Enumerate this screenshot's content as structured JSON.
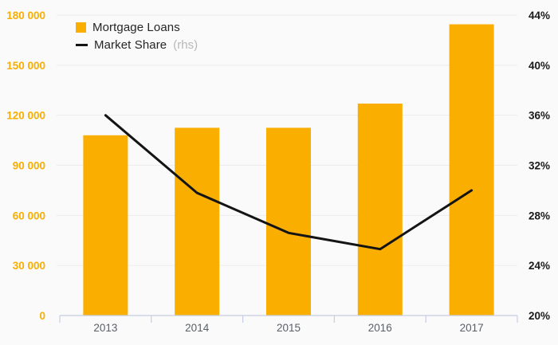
{
  "chart_data": {
    "type": "bar",
    "combo": "bar+line",
    "title": "",
    "categories": [
      "2013",
      "2014",
      "2015",
      "2016",
      "2017"
    ],
    "series": [
      {
        "name": "Mortgage Loans",
        "type": "bar",
        "axis": "left",
        "color": "#F9AE00",
        "values": [
          108000,
          112500,
          112500,
          127000,
          174500
        ]
      },
      {
        "name": "Market Share",
        "type": "line",
        "axis": "right",
        "color": "#141414",
        "values": [
          36.0,
          29.8,
          26.6,
          25.3,
          30.0
        ]
      }
    ],
    "left_axis": {
      "min": 0,
      "max": 180000,
      "step": 30000,
      "tick_labels": [
        "0",
        "30 000",
        "60 000",
        "90 000",
        "120 000",
        "150 000",
        "180 000"
      ],
      "label_color": "#F9AE00"
    },
    "right_axis": {
      "min": 20,
      "max": 44,
      "step": 4,
      "tick_labels": [
        "20%",
        "24%",
        "28%",
        "32%",
        "36%",
        "40%",
        "44%"
      ],
      "label_color": "#1A1A1A"
    },
    "grid": true,
    "legend_position": "top-left",
    "colors": {
      "background": "#FAFAFA",
      "gridline": "#ECECEA",
      "axis_line": "#C7CDE2",
      "bar": "#F9AE00",
      "line": "#141414",
      "year_label": "#5A5F66"
    }
  },
  "legend": {
    "items": [
      {
        "label": "Mortgage Loans",
        "suffix": "",
        "swatch": "square",
        "color": "#F9AE00"
      },
      {
        "label": "Market Share",
        "suffix": "(rhs)",
        "swatch": "line",
        "color": "#141414"
      }
    ]
  }
}
